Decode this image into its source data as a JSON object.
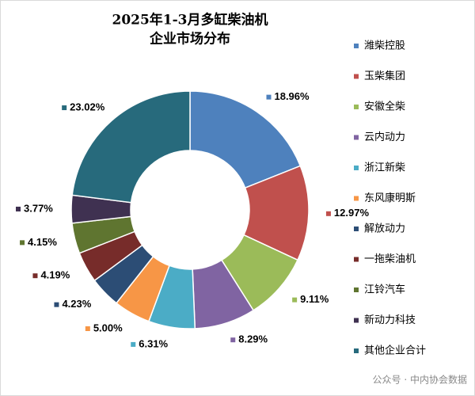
{
  "chart_data": {
    "type": "donut",
    "title": [
      "2025年1-3月多缸柴油机",
      "企业市场分布"
    ],
    "categories": [
      "潍柴控股",
      "玉柴集团",
      "安徽全柴",
      "云内动力",
      "浙江新柴",
      "东风康明斯",
      "解放动力",
      "一拖柴油机",
      "江铃汽车",
      "新动力科技",
      "其他企业合计"
    ],
    "values": [
      18.96,
      12.97,
      9.11,
      8.29,
      6.31,
      5.0,
      4.23,
      4.19,
      4.15,
      3.77,
      23.02
    ],
    "value_labels": [
      "18.96%",
      "12.97%",
      "9.11%",
      "8.29%",
      "6.31%",
      "5.00%",
      "4.23%",
      "4.19%",
      "4.15%",
      "3.77%",
      "23.02%"
    ],
    "colors": [
      "#4e81bd",
      "#c0504d",
      "#9bbb59",
      "#8064a2",
      "#4bacc6",
      "#f79646",
      "#2c4d75",
      "#772c2a",
      "#5f7530",
      "#3f3151",
      "#276a7c"
    ],
    "watermark": "公众号 · 中内协会数据"
  }
}
